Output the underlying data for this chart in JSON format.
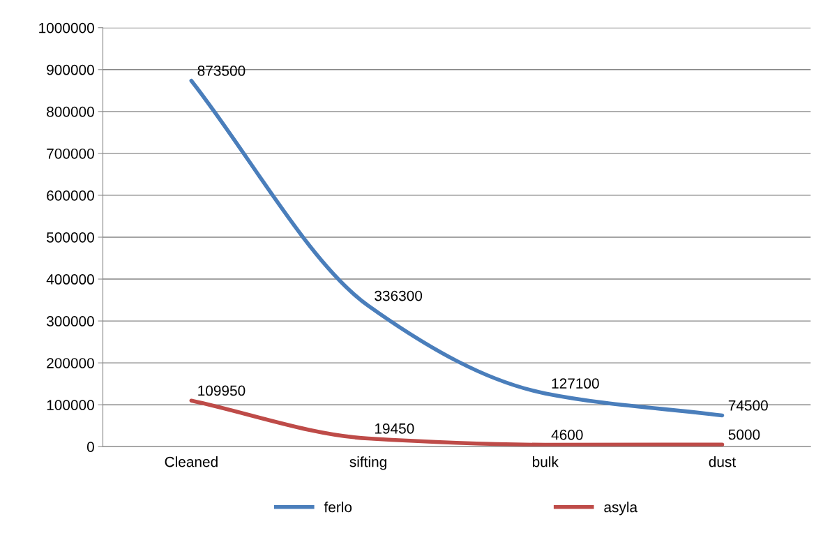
{
  "chart_data": {
    "type": "line",
    "categories": [
      "Cleaned",
      "sifting",
      "bulk",
      "dust"
    ],
    "series": [
      {
        "name": "ferlo",
        "color": "#4a7ebb",
        "values": [
          873500,
          336300,
          127100,
          74500
        ]
      },
      {
        "name": "asyla",
        "color": "#be4b48",
        "values": [
          109950,
          19450,
          4600,
          5000
        ]
      }
    ],
    "ylim": [
      0,
      1000000
    ],
    "yticks": [
      0,
      100000,
      200000,
      300000,
      400000,
      500000,
      600000,
      700000,
      800000,
      900000,
      1000000
    ],
    "grid": "y",
    "legend": "bottom",
    "data_labels": true,
    "marker": "none",
    "line_style": "solid"
  }
}
